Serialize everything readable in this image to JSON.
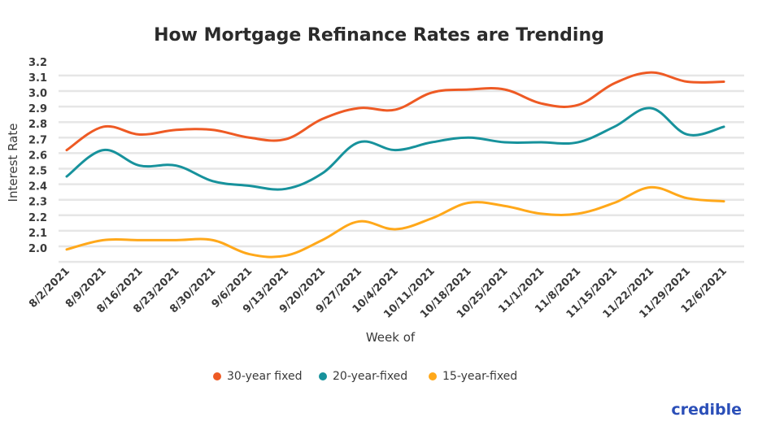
{
  "chart_data": {
    "type": "line",
    "title": "How Mortgage Refinance Rates are Trending",
    "xlabel": "Week of",
    "ylabel": "Interest Rate",
    "ylim": [
      1.9,
      3.2
    ],
    "yticks": [
      "2.0",
      "2.1",
      "2.2",
      "2.3",
      "2.4",
      "2.5",
      "2.6",
      "2.7",
      "2.8",
      "2.9",
      "3.0",
      "3.1",
      "3.2"
    ],
    "grid": true,
    "legend_position": "bottom",
    "categories": [
      "8/2/2021",
      "8/9/2021",
      "8/16/2021",
      "8/23/2021",
      "8/30/2021",
      "9/6/2021",
      "9/13/2021",
      "9/20/2021",
      "9/27/2021",
      "10/4/2021",
      "10/11/2021",
      "10/18/2021",
      "10/25/2021",
      "11/1/2021",
      "11/8/2021",
      "11/15/2021",
      "11/22/2021",
      "11/29/2021",
      "12/6/2021"
    ],
    "series": [
      {
        "name": "30-year fixed",
        "color": "#ee5a24",
        "values": [
          2.62,
          2.77,
          2.72,
          2.75,
          2.75,
          2.7,
          2.69,
          2.82,
          2.89,
          2.88,
          2.99,
          3.01,
          3.01,
          2.92,
          2.91,
          3.05,
          3.12,
          3.06,
          3.06
        ]
      },
      {
        "name": "20-year-fixed",
        "color": "#17929c",
        "values": [
          2.45,
          2.62,
          2.52,
          2.52,
          2.42,
          2.39,
          2.37,
          2.47,
          2.67,
          2.62,
          2.67,
          2.7,
          2.67,
          2.67,
          2.67,
          2.77,
          2.89,
          2.72,
          2.77
        ]
      },
      {
        "name": "15-year-fixed",
        "color": "#ffa81a",
        "values": [
          1.98,
          2.04,
          2.04,
          2.04,
          2.04,
          1.95,
          1.94,
          2.04,
          2.16,
          2.11,
          2.18,
          2.28,
          2.26,
          2.21,
          2.21,
          2.28,
          2.38,
          2.31,
          2.29
        ]
      }
    ]
  },
  "brand": {
    "logo_text": "credible",
    "color": "#2b4fb8"
  }
}
